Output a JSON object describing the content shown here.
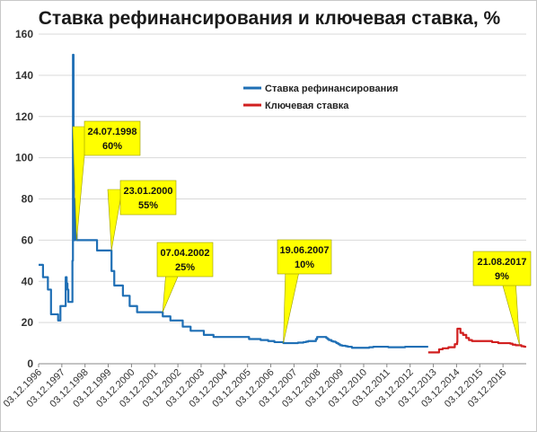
{
  "colors": {
    "refi_rate": "#1f6fb5",
    "key_rate": "#d11f1f",
    "callout_fill": "#ffff00",
    "grid": "#d9d9d9",
    "axis": "#888888"
  },
  "chart_data": {
    "type": "line",
    "title": "Ставка рефинансирования и ключевая ставка, %",
    "xlabel": "",
    "ylabel": "",
    "ylim": [
      0,
      160
    ],
    "yticks": [
      0,
      20,
      40,
      60,
      80,
      100,
      120,
      140,
      160
    ],
    "xlim": [
      "1996-12-03",
      "2017-12-03"
    ],
    "xticks": [
      "03.12.1996",
      "03.12.1997",
      "03.12.1998",
      "03.12.1999",
      "03.12.2000",
      "03.12.2001",
      "03.12.2002",
      "03.12.2003",
      "03.12.2004",
      "03.12.2005",
      "03.12.2006",
      "03.12.2007",
      "03.12.2008",
      "03.12.2009",
      "03.12.2010",
      "03.12.2011",
      "03.12.2012",
      "03.12.2013",
      "03.12.2014",
      "03.12.2015",
      "03.12.2016"
    ],
    "grid": "horizontal",
    "legend_position": "top-center",
    "series": [
      {
        "name": "Ставка рефинансирования",
        "color_key": "refi_rate",
        "points": [
          [
            "1996-12-03",
            48
          ],
          [
            "1997-02-10",
            48
          ],
          [
            "1997-02-10",
            42
          ],
          [
            "1997-04-28",
            42
          ],
          [
            "1997-04-28",
            36
          ],
          [
            "1997-06-16",
            36
          ],
          [
            "1997-06-16",
            24
          ],
          [
            "1997-10-06",
            24
          ],
          [
            "1997-10-06",
            21
          ],
          [
            "1997-11-11",
            21
          ],
          [
            "1997-11-11",
            28
          ],
          [
            "1998-02-02",
            28
          ],
          [
            "1998-02-02",
            42
          ],
          [
            "1998-02-17",
            42
          ],
          [
            "1998-02-17",
            39
          ],
          [
            "1998-03-02",
            39
          ],
          [
            "1998-03-02",
            36
          ],
          [
            "1998-03-16",
            36
          ],
          [
            "1998-03-16",
            30
          ],
          [
            "1998-05-19",
            30
          ],
          [
            "1998-05-19",
            50
          ],
          [
            "1998-05-27",
            50
          ],
          [
            "1998-05-27",
            150
          ],
          [
            "1998-06-05",
            150
          ],
          [
            "1998-06-05",
            60
          ],
          [
            "1998-06-29",
            60
          ],
          [
            "1998-06-29",
            80
          ],
          [
            "1998-07-24",
            80
          ],
          [
            "1998-07-24",
            60
          ],
          [
            "1999-06-10",
            60
          ],
          [
            "1999-06-10",
            55
          ],
          [
            "2000-01-24",
            55
          ],
          [
            "2000-01-24",
            45
          ],
          [
            "2000-03-07",
            45
          ],
          [
            "2000-03-07",
            38
          ],
          [
            "2000-07-21",
            38
          ],
          [
            "2000-07-21",
            33
          ],
          [
            "2000-11-04",
            33
          ],
          [
            "2000-11-04",
            28
          ],
          [
            "2001-03-01",
            28
          ],
          [
            "2001-03-01",
            25
          ],
          [
            "2002-04-09",
            25
          ],
          [
            "2002-04-09",
            23
          ],
          [
            "2002-08-07",
            23
          ],
          [
            "2002-08-07",
            21
          ],
          [
            "2003-02-17",
            21
          ],
          [
            "2003-02-17",
            18
          ],
          [
            "2003-06-21",
            18
          ],
          [
            "2003-06-21",
            16
          ],
          [
            "2004-01-15",
            16
          ],
          [
            "2004-01-15",
            14
          ],
          [
            "2004-06-15",
            14
          ],
          [
            "2004-06-15",
            13
          ],
          [
            "2005-12-26",
            13
          ],
          [
            "2005-12-26",
            12
          ],
          [
            "2006-06-26",
            12
          ],
          [
            "2006-06-26",
            11.5
          ],
          [
            "2006-10-23",
            11.5
          ],
          [
            "2006-10-23",
            11
          ],
          [
            "2007-01-29",
            11
          ],
          [
            "2007-01-29",
            10.5
          ],
          [
            "2007-06-19",
            10.5
          ],
          [
            "2007-06-19",
            10
          ],
          [
            "2008-02-04",
            10
          ],
          [
            "2008-02-04",
            10.25
          ],
          [
            "2008-04-29",
            10.25
          ],
          [
            "2008-04-29",
            10.5
          ],
          [
            "2008-06-10",
            10.5
          ],
          [
            "2008-06-10",
            10.75
          ],
          [
            "2008-07-14",
            10.75
          ],
          [
            "2008-07-14",
            11
          ],
          [
            "2008-11-12",
            11
          ],
          [
            "2008-11-12",
            12
          ],
          [
            "2008-12-01",
            12
          ],
          [
            "2008-12-01",
            13
          ],
          [
            "2009-04-24",
            13
          ],
          [
            "2009-04-24",
            12.5
          ],
          [
            "2009-05-14",
            12.5
          ],
          [
            "2009-05-14",
            12
          ],
          [
            "2009-06-05",
            12
          ],
          [
            "2009-06-05",
            11.5
          ],
          [
            "2009-07-13",
            11.5
          ],
          [
            "2009-07-13",
            11
          ],
          [
            "2009-08-10",
            11
          ],
          [
            "2009-08-10",
            10.75
          ],
          [
            "2009-09-15",
            10.75
          ],
          [
            "2009-09-15",
            10.5
          ],
          [
            "2009-09-30",
            10.5
          ],
          [
            "2009-09-30",
            10
          ],
          [
            "2009-10-30",
            10
          ],
          [
            "2009-10-30",
            9.5
          ],
          [
            "2009-11-25",
            9.5
          ],
          [
            "2009-11-25",
            9
          ],
          [
            "2009-12-28",
            9
          ],
          [
            "2009-12-28",
            8.75
          ],
          [
            "2010-02-24",
            8.75
          ],
          [
            "2010-02-24",
            8.5
          ],
          [
            "2010-03-29",
            8.5
          ],
          [
            "2010-03-29",
            8.25
          ],
          [
            "2010-06-01",
            8.25
          ],
          [
            "2010-06-01",
            7.75
          ],
          [
            "2011-02-28",
            7.75
          ],
          [
            "2011-02-28",
            8
          ],
          [
            "2011-05-03",
            8
          ],
          [
            "2011-05-03",
            8.25
          ],
          [
            "2011-12-26",
            8.25
          ],
          [
            "2011-12-26",
            8
          ],
          [
            "2012-09-14",
            8
          ],
          [
            "2012-09-14",
            8.25
          ],
          [
            "2013-09-13",
            8.25
          ]
        ]
      },
      {
        "name": "Ключевая ставка",
        "color_key": "key_rate",
        "points": [
          [
            "2013-09-13",
            5.5
          ],
          [
            "2014-03-03",
            5.5
          ],
          [
            "2014-03-03",
            7
          ],
          [
            "2014-04-28",
            7
          ],
          [
            "2014-04-28",
            7.5
          ],
          [
            "2014-07-28",
            7.5
          ],
          [
            "2014-07-28",
            8
          ],
          [
            "2014-11-05",
            8
          ],
          [
            "2014-11-05",
            9.5
          ],
          [
            "2014-12-12",
            9.5
          ],
          [
            "2014-12-12",
            10.5
          ],
          [
            "2014-12-16",
            10.5
          ],
          [
            "2014-12-16",
            17
          ],
          [
            "2015-02-02",
            17
          ],
          [
            "2015-02-02",
            15
          ],
          [
            "2015-03-16",
            15
          ],
          [
            "2015-03-16",
            14
          ],
          [
            "2015-05-05",
            14
          ],
          [
            "2015-05-05",
            12.5
          ],
          [
            "2015-06-16",
            12.5
          ],
          [
            "2015-06-16",
            11.5
          ],
          [
            "2015-08-03",
            11.5
          ],
          [
            "2015-08-03",
            11
          ],
          [
            "2016-06-14",
            11
          ],
          [
            "2016-06-14",
            10.5
          ],
          [
            "2016-09-19",
            10.5
          ],
          [
            "2016-09-19",
            10
          ],
          [
            "2017-03-27",
            10
          ],
          [
            "2017-03-27",
            9.75
          ],
          [
            "2017-05-02",
            9.75
          ],
          [
            "2017-05-02",
            9.25
          ],
          [
            "2017-06-19",
            9.25
          ],
          [
            "2017-06-19",
            9
          ],
          [
            "2017-09-18",
            9
          ],
          [
            "2017-09-18",
            8.5
          ],
          [
            "2017-10-30",
            8.5
          ],
          [
            "2017-10-30",
            8.25
          ],
          [
            "2017-12-03",
            8.25
          ]
        ]
      }
    ],
    "annotations": [
      {
        "date_label": "24.07.1998",
        "value_label": "60%",
        "x": "1998-07-24",
        "y": 60
      },
      {
        "date_label": "23.01.2000",
        "value_label": "55%",
        "x": "2000-01-23",
        "y": 55
      },
      {
        "date_label": "07.04.2002",
        "value_label": "25%",
        "x": "2002-04-07",
        "y": 25
      },
      {
        "date_label": "19.06.2007",
        "value_label": "10%",
        "x": "2007-06-19",
        "y": 10
      },
      {
        "date_label": "21.08.2017",
        "value_label": "9%",
        "x": "2017-08-21",
        "y": 9
      }
    ]
  }
}
